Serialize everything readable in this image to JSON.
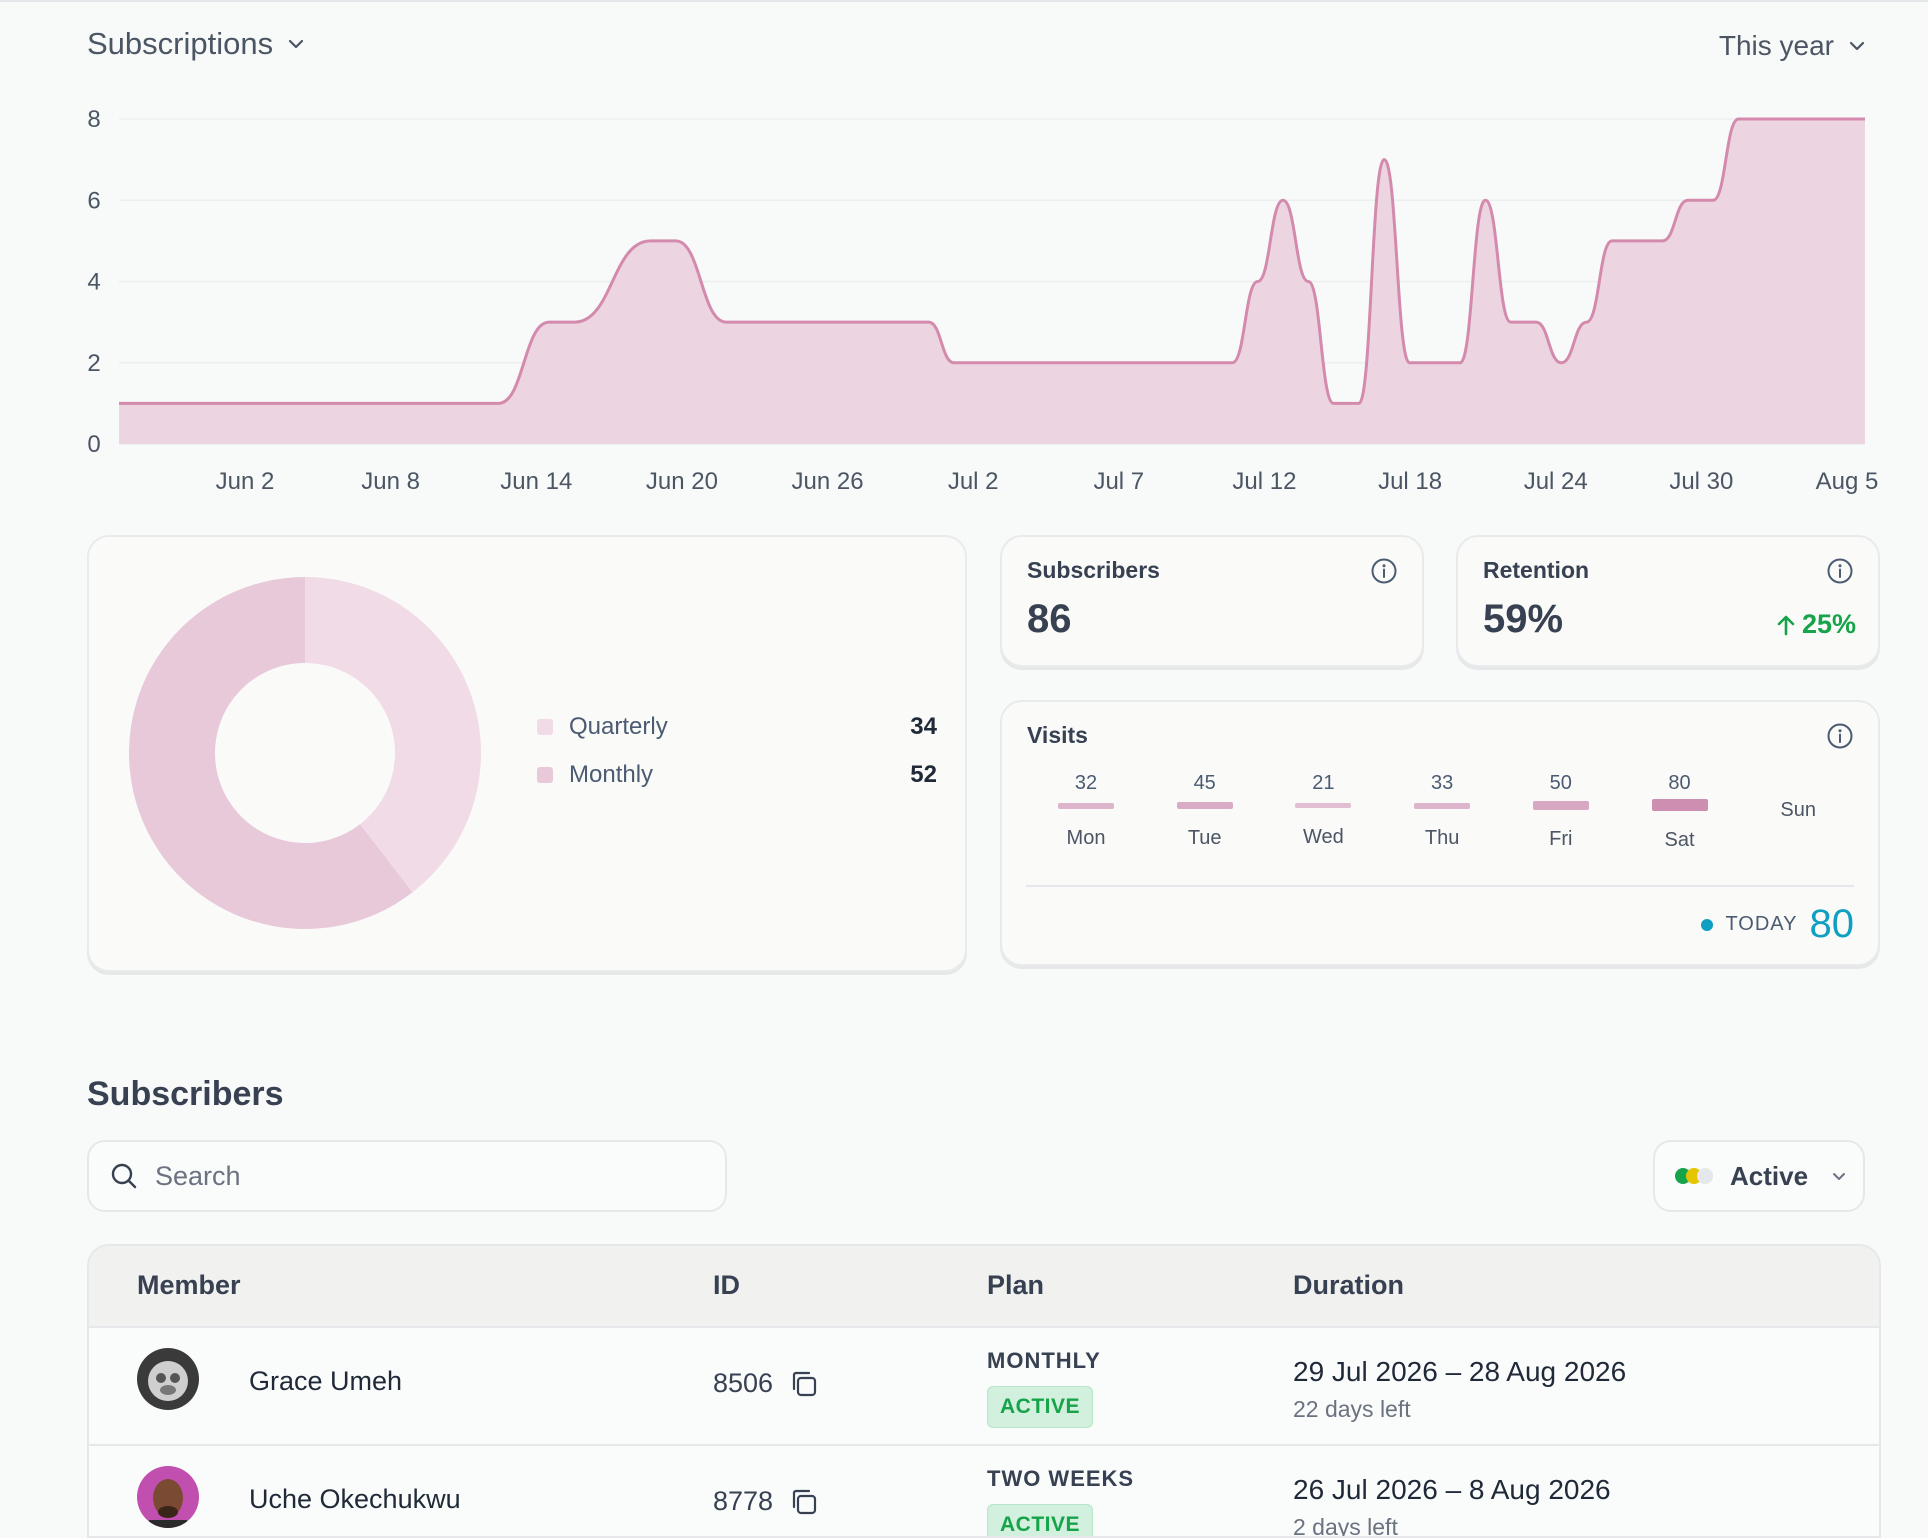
{
  "header": {
    "title": "Subscriptions",
    "range": "This year"
  },
  "chart_data": [
    {
      "type": "area",
      "title": "",
      "xlabel": "",
      "ylabel": "",
      "ylim": [
        0,
        8
      ],
      "y_ticks": [
        "0",
        "2",
        "4",
        "6",
        "8"
      ],
      "x_ticks": [
        "Jun 2",
        "Jun 8",
        "Jun 14",
        "Jun 20",
        "Jun 26",
        "Jul 2",
        "Jul 7",
        "Jul 12",
        "Jul 18",
        "Jul 24",
        "Jul 30",
        "Aug 5"
      ],
      "grid": true,
      "color": "#d48aad",
      "fill": "#ecd5e1",
      "series": [
        {
          "x": [
            0,
            15,
            17,
            18,
            21,
            22,
            24,
            32,
            33,
            44,
            45,
            46,
            47,
            48,
            49,
            50,
            51,
            52,
            53,
            54,
            55,
            56,
            57,
            58,
            59,
            60,
            61,
            62,
            63,
            64,
            65,
            66,
            67,
            68,
            69
          ],
          "y": [
            1,
            1,
            3,
            3,
            5,
            5,
            3,
            3,
            2,
            2,
            4,
            6,
            4,
            1,
            1,
            7,
            2,
            2,
            2,
            6,
            3,
            3,
            2,
            3,
            5,
            5,
            5,
            6,
            6,
            8,
            8,
            8,
            8,
            8,
            8
          ]
        }
      ]
    },
    {
      "type": "pie",
      "donut": true,
      "categories": [
        "Quarterly",
        "Monthly"
      ],
      "values": [
        34,
        52
      ],
      "colors": [
        "#f1dbe6",
        "#e8c9da"
      ]
    },
    {
      "type": "bar",
      "title": "Visits",
      "categories": [
        "Mon",
        "Tue",
        "Wed",
        "Thu",
        "Fri",
        "Sat",
        "Sun"
      ],
      "values": [
        32,
        45,
        21,
        33,
        50,
        80,
        null
      ]
    }
  ],
  "donut_legend": [
    {
      "label": "Quarterly",
      "value": "34",
      "color": "#f1dbe6"
    },
    {
      "label": "Monthly",
      "value": "52",
      "color": "#e8c9da"
    }
  ],
  "stats": {
    "subscribers": {
      "title": "Subscribers",
      "value": "86"
    },
    "retention": {
      "title": "Retention",
      "value": "59%",
      "delta": "25%"
    }
  },
  "visits": {
    "title": "Visits",
    "days": [
      {
        "label": "Mon",
        "value": "32"
      },
      {
        "label": "Tue",
        "value": "45"
      },
      {
        "label": "Wed",
        "value": "21"
      },
      {
        "label": "Thu",
        "value": "33"
      },
      {
        "label": "Fri",
        "value": "50"
      },
      {
        "label": "Sat",
        "value": "80"
      },
      {
        "label": "Sun",
        "value": ""
      }
    ],
    "today_label": "TODAY",
    "today_value": "80"
  },
  "subscribers_section": {
    "title": "Subscribers",
    "search_placeholder": "Search",
    "status_filter": "Active",
    "columns": {
      "member": "Member",
      "id": "ID",
      "plan": "Plan",
      "duration": "Duration"
    },
    "rows": [
      {
        "name": "Grace Umeh",
        "id": "8506",
        "plan": "MONTHLY",
        "status": "ACTIVE",
        "duration": "29 Jul 2026 – 28 Aug 2026",
        "days_left": "22 days left"
      },
      {
        "name": "Uche Okechukwu",
        "id": "8778",
        "plan": "TWO WEEKS",
        "status": "ACTIVE",
        "duration": "26 Jul 2026 – 8 Aug 2026",
        "days_left": "2 days left"
      }
    ]
  }
}
